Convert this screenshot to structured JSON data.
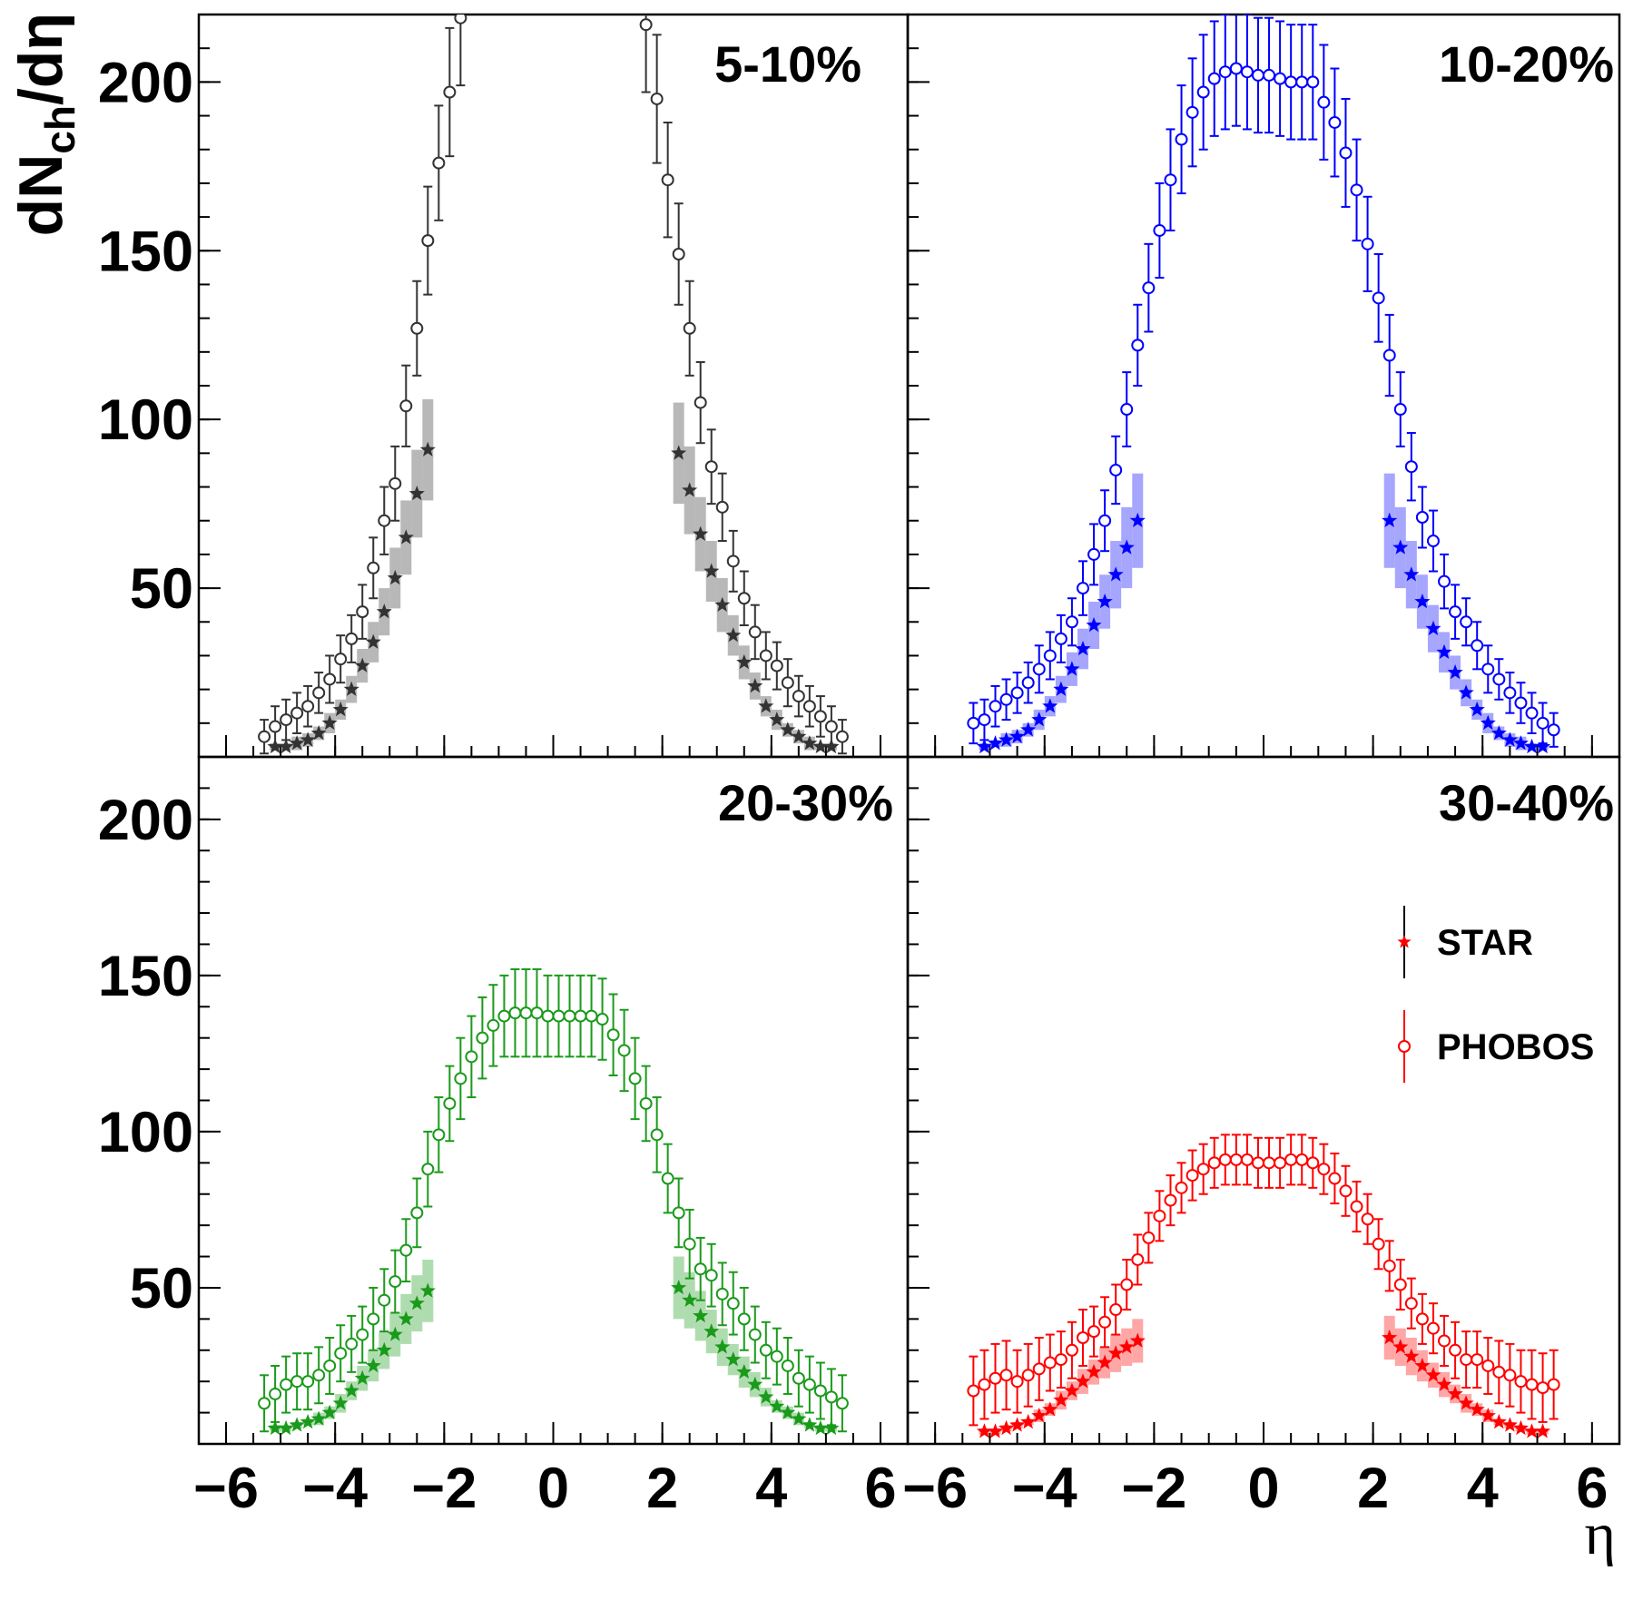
{
  "chart_data": [
    {
      "type": "scatter",
      "title": "5-10%",
      "color": "#333333",
      "ylabel": [
        "dN",
        "ch",
        "/dη"
      ],
      "xlim": [
        -6.5,
        6.5
      ],
      "ylim": [
        0,
        220
      ],
      "xticks": [
        -6,
        -4,
        -2,
        0,
        2,
        4,
        6
      ],
      "yticks": [
        50,
        100,
        150,
        200
      ],
      "series": [
        {
          "marker": "star",
          "x": [
            -5.1,
            -4.9,
            -4.7,
            -4.5,
            -4.3,
            -4.1,
            -3.9,
            -3.7,
            -3.5,
            -3.3,
            -3.1,
            -2.9,
            -2.7,
            -2.5,
            -2.3,
            2.3,
            2.5,
            2.7,
            2.9,
            3.1,
            3.3,
            3.5,
            3.7,
            3.9,
            4.1,
            4.3,
            4.5,
            4.7,
            4.9,
            5.1
          ],
          "values": [
            3,
            3,
            4,
            5,
            7,
            10,
            14,
            20,
            27,
            34,
            43,
            53,
            65,
            78,
            91,
            90,
            79,
            66,
            55,
            45,
            36,
            28,
            21,
            15,
            11,
            8,
            6,
            4,
            3,
            3
          ],
          "errors": [
            1,
            1,
            2,
            2,
            2,
            3,
            3,
            4,
            5,
            6,
            7,
            9,
            11,
            13,
            15,
            15,
            13,
            11,
            9,
            8,
            6,
            5,
            4,
            3,
            3,
            2,
            2,
            2,
            1,
            1
          ]
        },
        {
          "marker": "circle",
          "x": [
            -5.3,
            -5.1,
            -4.9,
            -4.7,
            -4.5,
            -4.3,
            -4.1,
            -3.9,
            -3.7,
            -3.5,
            -3.3,
            -3.1,
            -2.9,
            -2.7,
            -2.5,
            -2.3,
            -2.1,
            -1.9,
            -1.7,
            1.7,
            1.9,
            2.1,
            2.3,
            2.5,
            2.7,
            2.9,
            3.1,
            3.3,
            3.5,
            3.7,
            3.9,
            4.1,
            4.3,
            4.5,
            4.7,
            4.9,
            5.1,
            5.3
          ],
          "values": [
            6,
            9,
            11,
            13,
            15,
            19,
            23,
            29,
            35,
            43,
            56,
            70,
            81,
            104,
            127,
            153,
            176,
            197,
            219,
            217,
            195,
            171,
            149,
            127,
            105,
            86,
            74,
            58,
            47,
            37,
            30,
            27,
            22,
            18,
            15,
            12,
            9,
            6
          ],
          "errors": [
            5,
            6,
            6,
            6,
            6,
            6,
            7,
            7,
            7,
            8,
            9,
            10,
            11,
            12,
            14,
            16,
            17,
            19,
            20,
            20,
            19,
            17,
            15,
            14,
            12,
            11,
            10,
            9,
            8,
            8,
            7,
            7,
            7,
            6,
            6,
            6,
            6,
            5
          ]
        }
      ]
    },
    {
      "type": "scatter",
      "title": "10-20%",
      "color": "#0000ff",
      "xlim": [
        -6.5,
        6.5
      ],
      "ylim": [
        0,
        220
      ],
      "xticks": [
        -6,
        -4,
        -2,
        0,
        2,
        4,
        6
      ],
      "yticks": [
        50,
        100,
        150,
        200
      ],
      "series": [
        {
          "marker": "star",
          "x": [
            -5.1,
            -4.9,
            -4.7,
            -4.5,
            -4.3,
            -4.1,
            -3.9,
            -3.7,
            -3.5,
            -3.3,
            -3.1,
            -2.9,
            -2.7,
            -2.5,
            -2.3,
            2.3,
            2.5,
            2.7,
            2.9,
            3.1,
            3.3,
            3.5,
            3.7,
            3.9,
            4.1,
            4.3,
            4.5,
            4.7,
            4.9,
            5.1
          ],
          "values": [
            3,
            4,
            5,
            6,
            8,
            11,
            15,
            20,
            26,
            32,
            39,
            46,
            54,
            62,
            70,
            70,
            62,
            54,
            46,
            38,
            31,
            25,
            19,
            14,
            10,
            7,
            5,
            4,
            3,
            3
          ],
          "errors": [
            1,
            1,
            2,
            2,
            2,
            3,
            3,
            4,
            5,
            6,
            7,
            8,
            10,
            12,
            14,
            14,
            12,
            10,
            8,
            7,
            6,
            5,
            4,
            3,
            3,
            2,
            2,
            2,
            1,
            1
          ]
        },
        {
          "marker": "circle",
          "x": [
            -5.3,
            -5.1,
            -4.9,
            -4.7,
            -4.5,
            -4.3,
            -4.1,
            -3.9,
            -3.7,
            -3.5,
            -3.3,
            -3.1,
            -2.9,
            -2.7,
            -2.5,
            -2.3,
            -2.1,
            -1.9,
            -1.7,
            -1.5,
            -1.3,
            -1.1,
            -0.9,
            -0.7,
            -0.5,
            -0.3,
            -0.1,
            0.1,
            0.3,
            0.5,
            0.7,
            0.9,
            1.1,
            1.3,
            1.5,
            1.7,
            1.9,
            2.1,
            2.3,
            2.5,
            2.7,
            2.9,
            3.1,
            3.3,
            3.5,
            3.7,
            3.9,
            4.1,
            4.3,
            4.5,
            4.7,
            4.9,
            5.1,
            5.3
          ],
          "values": [
            10,
            11,
            15,
            17,
            19,
            22,
            26,
            30,
            35,
            40,
            50,
            60,
            70,
            85,
            103,
            122,
            139,
            156,
            171,
            183,
            191,
            197,
            201,
            203,
            204,
            203,
            202,
            202,
            201,
            200,
            200,
            200,
            194,
            188,
            179,
            168,
            152,
            136,
            119,
            103,
            86,
            71,
            64,
            52,
            43,
            40,
            33,
            26,
            23,
            19,
            16,
            13,
            10,
            8
          ],
          "errors": [
            6,
            6,
            6,
            6,
            6,
            6,
            7,
            7,
            7,
            7,
            8,
            9,
            9,
            10,
            11,
            12,
            13,
            14,
            15,
            16,
            16,
            17,
            17,
            17,
            17,
            17,
            17,
            17,
            17,
            17,
            17,
            17,
            17,
            16,
            16,
            15,
            14,
            13,
            12,
            11,
            10,
            9,
            9,
            8,
            8,
            7,
            7,
            7,
            6,
            6,
            6,
            6,
            6,
            5
          ]
        }
      ]
    },
    {
      "type": "scatter",
      "title": "20-30%",
      "color": "#1a9a1a",
      "xlim": [
        -6.5,
        6.5
      ],
      "ylim": [
        0,
        220
      ],
      "xticks": [
        {
          "value": -6,
          "label": "−6"
        },
        {
          "value": -4,
          "label": "−4"
        },
        {
          "value": -2,
          "label": "−2"
        },
        0,
        2,
        4,
        6
      ],
      "yticks": [
        50,
        100,
        150,
        200
      ],
      "series": [
        {
          "marker": "star",
          "x": [
            -5.1,
            -4.9,
            -4.7,
            -4.5,
            -4.3,
            -4.1,
            -3.9,
            -3.7,
            -3.5,
            -3.3,
            -3.1,
            -2.9,
            -2.7,
            -2.5,
            -2.3,
            2.3,
            2.5,
            2.7,
            2.9,
            3.1,
            3.3,
            3.5,
            3.7,
            3.9,
            4.1,
            4.3,
            4.5,
            4.7,
            4.9,
            5.1
          ],
          "values": [
            5,
            5,
            6,
            7,
            8,
            10,
            13,
            17,
            21,
            25,
            30,
            35,
            40,
            45,
            49,
            50,
            46,
            41,
            36,
            31,
            27,
            23,
            19,
            15,
            12,
            10,
            8,
            6,
            5,
            5
          ],
          "errors": [
            1,
            1,
            1,
            1,
            2,
            2,
            3,
            3,
            4,
            5,
            6,
            7,
            8,
            9,
            10,
            10,
            9,
            8,
            7,
            6,
            5,
            5,
            4,
            3,
            2,
            2,
            2,
            1,
            1,
            1
          ]
        },
        {
          "marker": "circle",
          "x": [
            -5.3,
            -5.1,
            -4.9,
            -4.7,
            -4.5,
            -4.3,
            -4.1,
            -3.9,
            -3.7,
            -3.5,
            -3.3,
            -3.1,
            -2.9,
            -2.7,
            -2.5,
            -2.3,
            -2.1,
            -1.9,
            -1.7,
            -1.5,
            -1.3,
            -1.1,
            -0.9,
            -0.7,
            -0.5,
            -0.3,
            -0.1,
            0.1,
            0.3,
            0.5,
            0.7,
            0.9,
            1.1,
            1.3,
            1.5,
            1.7,
            1.9,
            2.1,
            2.3,
            2.5,
            2.7,
            2.9,
            3.1,
            3.3,
            3.5,
            3.7,
            3.9,
            4.1,
            4.3,
            4.5,
            4.7,
            4.9,
            5.1,
            5.3
          ],
          "values": [
            13,
            16,
            19,
            20,
            20,
            22,
            25,
            29,
            32,
            35,
            40,
            46,
            52,
            62,
            74,
            88,
            99,
            109,
            117,
            124,
            130,
            134,
            137,
            138,
            138,
            138,
            137,
            137,
            137,
            137,
            137,
            136,
            131,
            126,
            117,
            109,
            99,
            85,
            74,
            64,
            56,
            54,
            48,
            45,
            40,
            35,
            30,
            28,
            25,
            21,
            19,
            17,
            15,
            13
          ],
          "errors": [
            9,
            9,
            9,
            9,
            9,
            9,
            9,
            9,
            9,
            9,
            10,
            10,
            10,
            10,
            11,
            12,
            12,
            12,
            13,
            13,
            13,
            13,
            13,
            14,
            14,
            14,
            13,
            13,
            13,
            13,
            13,
            13,
            13,
            13,
            13,
            12,
            12,
            11,
            11,
            11,
            10,
            10,
            10,
            10,
            10,
            9,
            9,
            9,
            9,
            9,
            9,
            9,
            9,
            9
          ]
        }
      ]
    },
    {
      "type": "scatter",
      "title": "30-40%",
      "color": "#ff0000",
      "xlabel": "η",
      "legend": "right",
      "xlim": [
        -6.5,
        6.5
      ],
      "ylim": [
        0,
        220
      ],
      "xticks": [
        {
          "value": -6,
          "label": "−6"
        },
        {
          "value": -4,
          "label": "−4"
        },
        {
          "value": -2,
          "label": "−2"
        },
        0,
        2,
        4,
        6
      ],
      "yticks": [
        50,
        100,
        150,
        200
      ],
      "series": [
        {
          "name": "STAR",
          "marker": "star",
          "x": [
            -5.1,
            -4.9,
            -4.7,
            -4.5,
            -4.3,
            -4.1,
            -3.9,
            -3.7,
            -3.5,
            -3.3,
            -3.1,
            -2.9,
            -2.7,
            -2.5,
            -2.3,
            2.3,
            2.5,
            2.7,
            2.9,
            3.1,
            3.3,
            3.5,
            3.7,
            3.9,
            4.1,
            4.3,
            4.5,
            4.7,
            4.9,
            5.1
          ],
          "values": [
            4,
            4,
            5,
            6,
            7,
            9,
            11,
            14,
            17,
            20,
            23,
            26,
            29,
            31,
            33,
            34,
            31,
            28,
            25,
            22,
            19,
            16,
            13,
            11,
            9,
            7,
            6,
            5,
            4,
            4
          ],
          "errors": [
            1,
            1,
            1,
            1,
            1,
            2,
            2,
            3,
            3,
            4,
            4,
            5,
            6,
            6,
            7,
            7,
            6,
            6,
            5,
            4,
            4,
            3,
            3,
            2,
            2,
            1,
            1,
            1,
            1,
            1
          ]
        },
        {
          "name": "PHOBOS",
          "marker": "circle",
          "x": [
            -5.3,
            -5.1,
            -4.9,
            -4.7,
            -4.5,
            -4.3,
            -4.1,
            -3.9,
            -3.7,
            -3.5,
            -3.3,
            -3.1,
            -2.9,
            -2.7,
            -2.5,
            -2.3,
            -2.1,
            -1.9,
            -1.7,
            -1.5,
            -1.3,
            -1.1,
            -0.9,
            -0.7,
            -0.5,
            -0.3,
            -0.1,
            0.1,
            0.3,
            0.5,
            0.7,
            0.9,
            1.1,
            1.3,
            1.5,
            1.7,
            1.9,
            2.1,
            2.3,
            2.5,
            2.7,
            2.9,
            3.1,
            3.3,
            3.5,
            3.7,
            3.9,
            4.1,
            4.3,
            4.5,
            4.7,
            4.9,
            5.1,
            5.3
          ],
          "values": [
            17,
            19,
            21,
            22,
            20,
            22,
            24,
            26,
            27,
            30,
            34,
            36,
            39,
            43,
            51,
            59,
            66,
            73,
            78,
            82,
            86,
            88,
            90,
            91,
            91,
            91,
            90,
            90,
            90,
            91,
            91,
            90,
            88,
            85,
            81,
            76,
            72,
            64,
            57,
            51,
            45,
            40,
            37,
            33,
            30,
            27,
            27,
            25,
            23,
            22,
            20,
            19,
            18,
            19
          ],
          "errors": [
            11,
            11,
            11,
            11,
            10,
            10,
            10,
            9,
            9,
            9,
            9,
            8,
            8,
            8,
            8,
            8,
            8,
            8,
            8,
            8,
            8,
            8,
            8,
            8,
            8,
            8,
            8,
            8,
            8,
            8,
            8,
            8,
            8,
            8,
            8,
            8,
            8,
            8,
            8,
            8,
            8,
            8,
            8,
            8,
            9,
            9,
            9,
            9,
            10,
            10,
            10,
            11,
            11,
            11
          ]
        }
      ]
    }
  ]
}
